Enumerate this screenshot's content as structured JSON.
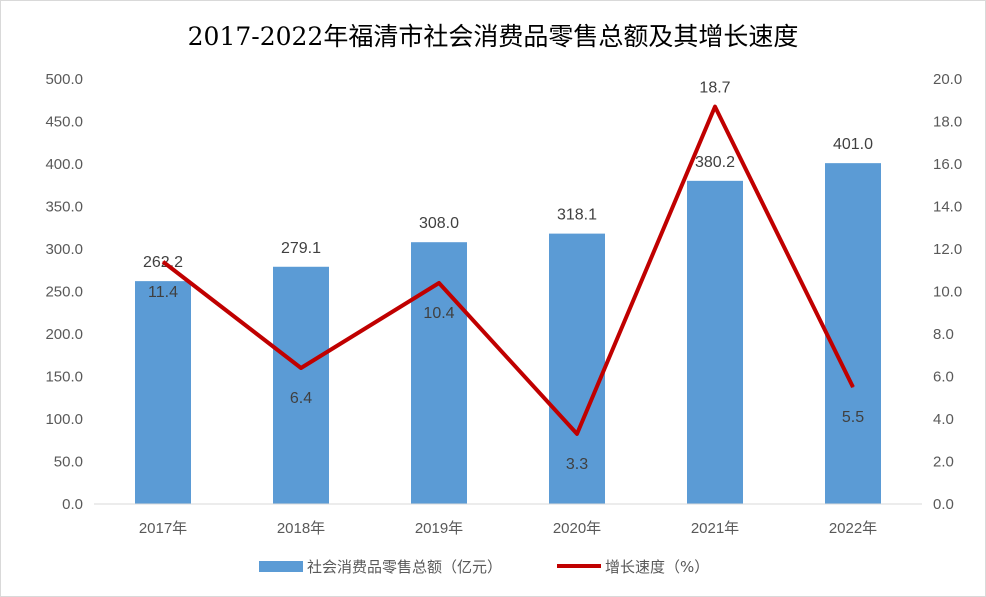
{
  "chart_data": {
    "type": "bar+line",
    "title": "2017-2022年福清市社会消费品零售总额及其增长速度",
    "categories": [
      "2017年",
      "2018年",
      "2019年",
      "2020年",
      "2021年",
      "2022年"
    ],
    "series": [
      {
        "name": "社会消费品零售总额（亿元）",
        "type": "bar",
        "axis": "left",
        "values": [
          262.2,
          279.1,
          308.0,
          318.1,
          380.2,
          401.0
        ],
        "labels": [
          "262.2",
          "279.1",
          "308.0",
          "318.1",
          "380.2",
          "401.0"
        ]
      },
      {
        "name": "增长速度（%）",
        "type": "line",
        "axis": "right",
        "values": [
          11.4,
          6.4,
          10.4,
          3.3,
          18.7,
          5.5
        ],
        "labels": [
          "11.4",
          "6.4",
          "10.4",
          "3.3",
          "18.7",
          "5.5"
        ]
      }
    ],
    "left_axis": {
      "ylim": [
        0,
        500
      ],
      "ticks": [
        "0.0",
        "50.0",
        "100.0",
        "150.0",
        "200.0",
        "250.0",
        "300.0",
        "350.0",
        "400.0",
        "450.0",
        "500.0"
      ]
    },
    "right_axis": {
      "ylim": [
        0,
        20
      ],
      "ticks": [
        "0.0",
        "2.0",
        "4.0",
        "6.0",
        "8.0",
        "10.0",
        "12.0",
        "14.0",
        "16.0",
        "18.0",
        "20.0"
      ]
    },
    "legend": "bottom",
    "grid": false,
    "colors": {
      "bar": "#5B9BD5",
      "line": "#C00000"
    }
  }
}
